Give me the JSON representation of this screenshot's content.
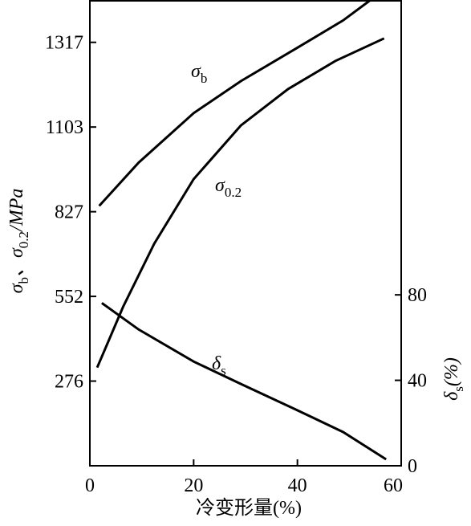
{
  "chart_data": {
    "type": "line",
    "xlabel": "冷变形量(%)",
    "ylabel": [
      {
        "text": "σ"
      },
      {
        "text": "b",
        "sub": true
      },
      {
        "text": "、σ"
      },
      {
        "text": "0.2",
        "sub": true
      },
      {
        "text": "/MPa"
      }
    ],
    "y2label": [
      {
        "text": "δ"
      },
      {
        "text": "s",
        "sub": true
      },
      {
        "text": "(%)"
      }
    ],
    "xlim": [
      0,
      60
    ],
    "xticks": [
      0,
      20,
      40,
      60
    ],
    "ylim": [
      0,
      1423
    ],
    "yticks": [
      276,
      552,
      827,
      1103,
      1317
    ],
    "y2lim": [
      0,
      218
    ],
    "y2ticks": [
      0,
      40,
      80
    ],
    "series": [
      {
        "label": [
          {
            "text": "σ"
          },
          {
            "text": "b",
            "sub": true
          }
        ],
        "color": "#000000",
        "x": [
          1.8,
          9.4,
          20,
          29.1,
          39.7,
          48.8,
          54.1
        ],
        "values": [
          846,
          987,
          1138,
          1219,
          1301,
          1372,
          1423
        ]
      },
      {
        "label": [
          {
            "text": "σ"
          },
          {
            "text": "0.2",
            "sub": true
          }
        ],
        "color": "#000000",
        "x": [
          1.4,
          6.4,
          12.4,
          20,
          29.1,
          38.2,
          47.3,
          56.7
        ],
        "values": [
          320,
          518,
          723,
          933,
          1107,
          1199,
          1270,
          1327
        ]
      },
      {
        "label": [
          {
            "text": "δ"
          },
          {
            "text": "s",
            "sub": true
          }
        ],
        "color": "#000000",
        "axis": "y2",
        "x": [
          2.3,
          9.4,
          20,
          29.1,
          39.7,
          48.8,
          57.1
        ],
        "values": [
          76.2,
          63.8,
          48.8,
          38.3,
          26.3,
          15.8,
          3.0
        ]
      }
    ]
  }
}
